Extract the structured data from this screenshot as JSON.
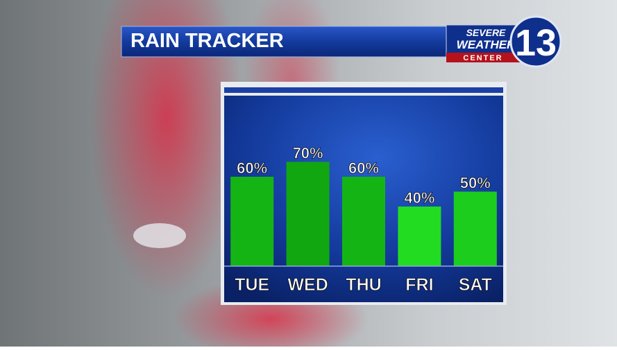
{
  "chart_data": {
    "type": "bar",
    "title": "RAIN TRACKER",
    "categories": [
      "TUE",
      "WED",
      "THU",
      "FRI",
      "SAT"
    ],
    "values": [
      60,
      70,
      60,
      40,
      50
    ],
    "value_labels": [
      "60%",
      "70%",
      "60%",
      "40%",
      "50%"
    ],
    "colors": [
      "#15b415",
      "#10a710",
      "#15b415",
      "#22dc22",
      "#1dcd1d"
    ]
  },
  "logo": {
    "line1": "SEVERE",
    "line2": "WEATHER",
    "line3": "CENTER",
    "channel": "13"
  }
}
